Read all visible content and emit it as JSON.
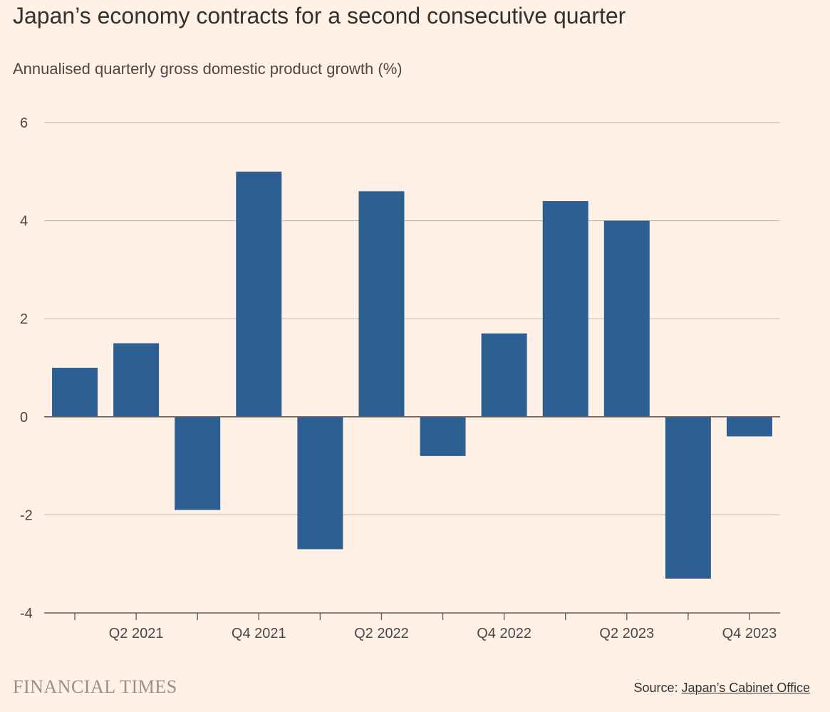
{
  "title": "Japan’s economy contracts for a second consecutive quarter",
  "subtitle": "Annualised quarterly gross domestic product growth (%)",
  "brand": "FINANCIAL TIMES",
  "source": {
    "label": "Source:",
    "link_text": "Japan’s Cabinet Office"
  },
  "colors": {
    "bar": "#2e5f93",
    "gridline": "#ccc1b7",
    "zero_line": "#66605c",
    "axis": "#66605c"
  },
  "chart_data": {
    "type": "bar",
    "title": "Japan’s economy contracts for a second consecutive quarter",
    "subtitle": "Annualised quarterly gross domestic product growth (%)",
    "categories": [
      "Q1 2021",
      "Q2 2021",
      "Q3 2021",
      "Q4 2021",
      "Q1 2022",
      "Q2 2022",
      "Q3 2022",
      "Q4 2022",
      "Q1 2023",
      "Q2 2023",
      "Q3 2023",
      "Q4 2023"
    ],
    "values": [
      1.0,
      1.5,
      -1.9,
      5.0,
      -2.7,
      4.6,
      -0.8,
      1.7,
      4.4,
      4.0,
      -3.3,
      -0.4
    ],
    "x_tick_labels": [
      "Q2 2021",
      "Q4 2021",
      "Q2 2022",
      "Q4 2022",
      "Q2 2023",
      "Q4 2023"
    ],
    "y_ticks": [
      -4,
      -2,
      0,
      2,
      4,
      6
    ],
    "ylim": [
      -4,
      6
    ],
    "grid": true,
    "legend": "none"
  }
}
